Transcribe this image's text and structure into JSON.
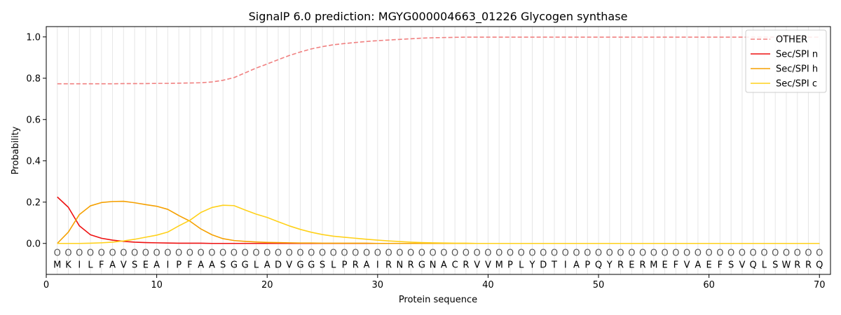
{
  "chart_data": {
    "type": "line",
    "title": "SignalP 6.0 prediction: MGYG000004663_01226 Glycogen synthase",
    "xlabel": "Protein sequence",
    "ylabel": "Probability",
    "xlim": [
      0,
      71
    ],
    "ylim": [
      -0.15,
      1.05
    ],
    "xticks": [
      "0",
      "10",
      "20",
      "30",
      "40",
      "50",
      "60",
      "70"
    ],
    "yticks": [
      "0.0",
      "0.2",
      "0.4",
      "0.6",
      "0.8",
      "1.0"
    ],
    "legend_position": "top-right",
    "grid": "vertical lines at each residue",
    "sequence": [
      "M",
      "K",
      "I",
      "L",
      "F",
      "A",
      "V",
      "S",
      "E",
      "A",
      "I",
      "P",
      "F",
      "A",
      "A",
      "S",
      "G",
      "G",
      "L",
      "A",
      "D",
      "V",
      "G",
      "G",
      "S",
      "L",
      "P",
      "R",
      "A",
      "I",
      "R",
      "N",
      "R",
      "G",
      "N",
      "A",
      "C",
      "R",
      "V",
      "V",
      "M",
      "P",
      "L",
      "Y",
      "D",
      "T",
      "I",
      "A",
      "P",
      "Q",
      "Y",
      "R",
      "E",
      "R",
      "M",
      "E",
      "F",
      "V",
      "A",
      "E",
      "F",
      "S",
      "V",
      "Q",
      "L",
      "S",
      "W",
      "R",
      "R",
      "Q"
    ],
    "region_labels": [
      "O",
      "O",
      "O",
      "O",
      "O",
      "O",
      "O",
      "O",
      "O",
      "O",
      "O",
      "O",
      "O",
      "O",
      "O",
      "O",
      "O",
      "O",
      "O",
      "O",
      "O",
      "O",
      "O",
      "O",
      "O",
      "O",
      "O",
      "O",
      "O",
      "O",
      "O",
      "O",
      "O",
      "O",
      "O",
      "O",
      "O",
      "O",
      "O",
      "O",
      "O",
      "O",
      "O",
      "O",
      "O",
      "O",
      "O",
      "O",
      "O",
      "O",
      "O",
      "O",
      "O",
      "O",
      "O",
      "O",
      "O",
      "O",
      "O",
      "O",
      "O",
      "O",
      "O",
      "O",
      "O",
      "O",
      "O",
      "O",
      "O",
      "O"
    ],
    "series": [
      {
        "name": "OTHER",
        "color": "#f08080",
        "style": "dashed",
        "values": [
          0.773,
          0.773,
          0.773,
          0.773,
          0.773,
          0.773,
          0.774,
          0.774,
          0.774,
          0.775,
          0.775,
          0.776,
          0.777,
          0.778,
          0.782,
          0.79,
          0.803,
          0.826,
          0.849,
          0.869,
          0.89,
          0.91,
          0.927,
          0.942,
          0.953,
          0.962,
          0.968,
          0.973,
          0.978,
          0.982,
          0.985,
          0.988,
          0.991,
          0.994,
          0.996,
          0.997,
          0.998,
          0.999,
          0.999,
          0.999,
          0.999,
          0.999,
          0.999,
          0.999,
          0.999,
          0.999,
          0.999,
          0.999,
          0.999,
          0.999,
          0.999,
          0.999,
          0.999,
          0.999,
          0.999,
          0.999,
          0.999,
          0.999,
          0.999,
          0.999,
          0.999,
          0.999,
          0.999,
          0.999,
          0.999,
          0.999,
          0.999,
          0.999,
          0.999,
          0.999
        ]
      },
      {
        "name": "Sec/SPI n",
        "color": "#ee1111",
        "style": "solid",
        "values": [
          0.225,
          0.175,
          0.085,
          0.042,
          0.025,
          0.016,
          0.01,
          0.006,
          0.004,
          0.003,
          0.002,
          0.001,
          0.001,
          0.001,
          0,
          0,
          0,
          0,
          0,
          0,
          0,
          0,
          0,
          0,
          0,
          0,
          0,
          0,
          0,
          0,
          0,
          0,
          0,
          0,
          0,
          0,
          0,
          0,
          0,
          0,
          0,
          0,
          0,
          0,
          0,
          0,
          0,
          0,
          0,
          0,
          0,
          0,
          0,
          0,
          0,
          0,
          0,
          0,
          0,
          0,
          0,
          0,
          0,
          0,
          0,
          0,
          0,
          0,
          0,
          0
        ]
      },
      {
        "name": "Sec/SPI h",
        "color": "#f5a000",
        "style": "solid",
        "values": [
          0,
          0.055,
          0.14,
          0.182,
          0.198,
          0.203,
          0.204,
          0.197,
          0.188,
          0.18,
          0.165,
          0.135,
          0.108,
          0.07,
          0.042,
          0.023,
          0.014,
          0.01,
          0.007,
          0.005,
          0.004,
          0.003,
          0.002,
          0.002,
          0.001,
          0.001,
          0.001,
          0.001,
          0.001,
          0,
          0,
          0,
          0,
          0,
          0,
          0,
          0,
          0,
          0,
          0,
          0,
          0,
          0,
          0,
          0,
          0,
          0,
          0,
          0,
          0,
          0,
          0,
          0,
          0,
          0,
          0,
          0,
          0,
          0,
          0,
          0,
          0,
          0,
          0,
          0,
          0,
          0,
          0,
          0,
          0
        ]
      },
      {
        "name": "Sec/SPI c",
        "color": "#ffd11a",
        "style": "solid",
        "values": [
          0,
          0,
          0,
          0.001,
          0.003,
          0.006,
          0.012,
          0.02,
          0.03,
          0.04,
          0.055,
          0.085,
          0.112,
          0.15,
          0.174,
          0.185,
          0.183,
          0.162,
          0.142,
          0.126,
          0.105,
          0.085,
          0.068,
          0.054,
          0.043,
          0.035,
          0.03,
          0.025,
          0.02,
          0.016,
          0.012,
          0.009,
          0.006,
          0.004,
          0.003,
          0.002,
          0.001,
          0.001,
          0,
          0,
          0,
          0,
          0,
          0,
          0,
          0,
          0,
          0,
          0,
          0,
          0,
          0,
          0,
          0,
          0,
          0,
          0,
          0,
          0,
          0,
          0,
          0,
          0,
          0,
          0,
          0,
          0,
          0,
          0,
          0
        ]
      }
    ]
  }
}
